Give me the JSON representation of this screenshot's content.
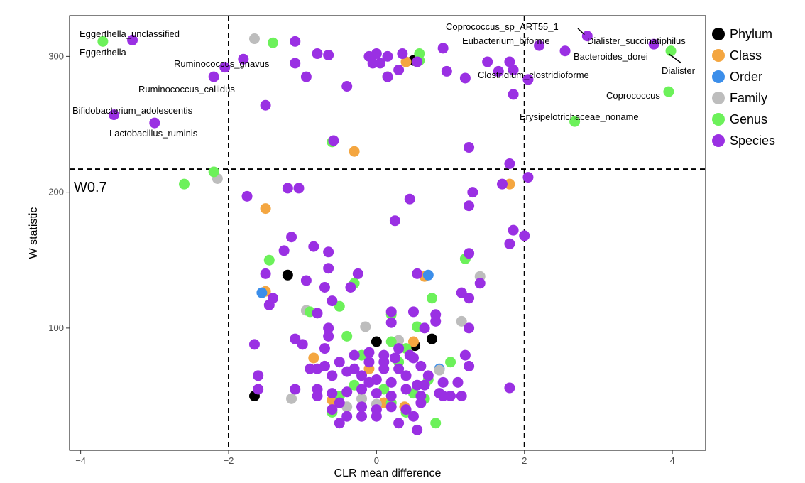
{
  "chart_data": {
    "type": "scatter",
    "xlabel": "CLR mean difference",
    "ylabel": "W statistic",
    "xlim": [
      -4.15,
      4.45
    ],
    "ylim": [
      10,
      330
    ],
    "x_ticks": [
      -4,
      -2,
      0,
      2,
      4
    ],
    "y_ticks": [
      100,
      200,
      300
    ],
    "x_tick_labels": [
      "−4",
      "−2",
      "0",
      "2",
      "4"
    ],
    "y_tick_labels": [
      "100",
      "200",
      "300"
    ],
    "grid": false,
    "legend_position": "right",
    "reference_lines": {
      "vertical": [
        -2,
        2
      ],
      "horizontal": 217,
      "horizontal_label": "W0.7"
    },
    "colors": {
      "Phylum": "#000000",
      "Class": "#F4A640",
      "Order": "#3B8EEA",
      "Family": "#BDBDBD",
      "Genus": "#6CF15A",
      "Species": "#9A30E3"
    },
    "legend": [
      "Phylum",
      "Class",
      "Order",
      "Family",
      "Genus",
      "Species"
    ],
    "series": [
      {
        "name": "Phylum",
        "points": [
          [
            -1.2,
            139
          ],
          [
            0,
            90
          ],
          [
            0.5,
            297
          ],
          [
            0.52,
            87
          ],
          [
            0.75,
            92
          ],
          [
            -1.65,
            50
          ]
        ]
      },
      {
        "name": "Class",
        "points": [
          [
            -0.3,
            230
          ],
          [
            0.4,
            296
          ],
          [
            1.8,
            206
          ],
          [
            -1.5,
            188
          ],
          [
            0.65,
            138
          ],
          [
            -1.5,
            127
          ],
          [
            -0.85,
            78
          ],
          [
            -0.1,
            70
          ],
          [
            -0.6,
            47
          ],
          [
            0.1,
            45
          ],
          [
            0.38,
            42
          ],
          [
            0.5,
            90
          ]
        ]
      },
      {
        "name": "Order",
        "points": [
          [
            0.7,
            139
          ],
          [
            -1.55,
            126
          ],
          [
            0.85,
            70
          ]
        ]
      },
      {
        "name": "Family",
        "points": [
          [
            -1.65,
            313
          ],
          [
            -2.15,
            210
          ],
          [
            1.4,
            138
          ],
          [
            -0.95,
            113
          ],
          [
            -0.15,
            101
          ],
          [
            1.15,
            105
          ],
          [
            0.3,
            91
          ],
          [
            0.85,
            69
          ],
          [
            -1.15,
            48
          ],
          [
            -0.2,
            48
          ],
          [
            -0.4,
            42
          ],
          [
            0,
            44
          ]
        ]
      },
      {
        "name": "Genus",
        "points": [
          [
            -3.7,
            311
          ],
          [
            -1.4,
            310
          ],
          [
            0.58,
            302
          ],
          [
            0.58,
            297
          ],
          [
            0.15,
            285
          ],
          [
            -0.6,
            237
          ],
          [
            -2.2,
            215
          ],
          [
            -2.6,
            206
          ],
          [
            2.68,
            252
          ],
          [
            3.95,
            274
          ],
          [
            3.98,
            304
          ],
          [
            -1.45,
            150
          ],
          [
            1.2,
            151
          ],
          [
            -0.3,
            133
          ],
          [
            0.75,
            122
          ],
          [
            -0.9,
            112
          ],
          [
            -0.5,
            116
          ],
          [
            0.2,
            110
          ],
          [
            0.55,
            101
          ],
          [
            -0.4,
            94
          ],
          [
            0.2,
            90
          ],
          [
            0.4,
            85
          ],
          [
            -0.2,
            80
          ],
          [
            0.3,
            75
          ],
          [
            0.7,
            62
          ],
          [
            -0.3,
            58
          ],
          [
            0.1,
            55
          ],
          [
            0.5,
            52
          ],
          [
            -0.5,
            50
          ],
          [
            0.2,
            45
          ],
          [
            0.8,
            30
          ],
          [
            -0.6,
            38
          ],
          [
            0.4,
            38
          ],
          [
            0.65,
            48
          ],
          [
            1.0,
            75
          ]
        ]
      },
      {
        "name": "Species",
        "points": [
          [
            -3.3,
            312
          ],
          [
            -3.55,
            257
          ],
          [
            -3.0,
            251
          ],
          [
            -1.5,
            264
          ],
          [
            -2.2,
            285
          ],
          [
            -2.05,
            292
          ],
          [
            -1.8,
            298
          ],
          [
            -1.1,
            311
          ],
          [
            -1.1,
            295
          ],
          [
            -0.95,
            285
          ],
          [
            -0.8,
            302
          ],
          [
            -0.65,
            301
          ],
          [
            -0.4,
            278
          ],
          [
            -0.1,
            300
          ],
          [
            0,
            302
          ],
          [
            -0.05,
            295
          ],
          [
            0.05,
            295
          ],
          [
            0.15,
            300
          ],
          [
            0.15,
            285
          ],
          [
            0.3,
            290
          ],
          [
            0.35,
            302
          ],
          [
            0.55,
            296
          ],
          [
            0.9,
            306
          ],
          [
            0.95,
            289
          ],
          [
            1.2,
            284
          ],
          [
            1.5,
            296
          ],
          [
            1.65,
            289
          ],
          [
            1.8,
            296
          ],
          [
            1.85,
            272
          ],
          [
            1.85,
            290
          ],
          [
            2.05,
            283
          ],
          [
            2.2,
            308
          ],
          [
            2.55,
            304
          ],
          [
            2.85,
            315
          ],
          [
            3.75,
            309
          ],
          [
            -0.58,
            238
          ],
          [
            1.25,
            233
          ],
          [
            1.8,
            221
          ],
          [
            2.05,
            211
          ],
          [
            1.3,
            200
          ],
          [
            1.7,
            206
          ],
          [
            1.25,
            190
          ],
          [
            -1.2,
            203
          ],
          [
            -1.05,
            203
          ],
          [
            -1.75,
            197
          ],
          [
            0.45,
            195
          ],
          [
            0.25,
            179
          ],
          [
            1.85,
            172
          ],
          [
            1.8,
            162
          ],
          [
            2.0,
            168
          ],
          [
            -1.15,
            167
          ],
          [
            -1.25,
            157
          ],
          [
            -0.85,
            160
          ],
          [
            -0.65,
            156
          ],
          [
            -0.65,
            144
          ],
          [
            -1.5,
            140
          ],
          [
            0.55,
            140
          ],
          [
            -0.25,
            140
          ],
          [
            1.25,
            155
          ],
          [
            -0.95,
            135
          ],
          [
            -0.35,
            130
          ],
          [
            -0.7,
            130
          ],
          [
            -1.4,
            122
          ],
          [
            -1.45,
            117
          ],
          [
            -0.6,
            120
          ],
          [
            -0.8,
            111
          ],
          [
            0.2,
            112
          ],
          [
            0.5,
            112
          ],
          [
            1.15,
            126
          ],
          [
            1.25,
            122
          ],
          [
            1.4,
            133
          ],
          [
            -0.65,
            100
          ],
          [
            0.2,
            104
          ],
          [
            0.65,
            100
          ],
          [
            1.25,
            100
          ],
          [
            -0.65,
            94
          ],
          [
            -1.1,
            92
          ],
          [
            -1.0,
            88
          ],
          [
            -0.7,
            85
          ],
          [
            -0.9,
            70
          ],
          [
            -0.7,
            72
          ],
          [
            -0.5,
            75
          ],
          [
            -0.3,
            80
          ],
          [
            -0.1,
            82
          ],
          [
            0.1,
            80
          ],
          [
            0.25,
            78
          ],
          [
            0.45,
            80
          ],
          [
            0.6,
            72
          ],
          [
            0.7,
            65
          ],
          [
            0.9,
            60
          ],
          [
            1.2,
            80
          ],
          [
            1.25,
            72
          ],
          [
            -0.6,
            65
          ],
          [
            -0.4,
            68
          ],
          [
            -0.2,
            65
          ],
          [
            0,
            62
          ],
          [
            0.2,
            60
          ],
          [
            0.4,
            65
          ],
          [
            0.55,
            58
          ],
          [
            -0.8,
            55
          ],
          [
            -0.6,
            52
          ],
          [
            -0.4,
            53
          ],
          [
            -0.2,
            55
          ],
          [
            0,
            52
          ],
          [
            0.2,
            50
          ],
          [
            0.4,
            55
          ],
          [
            0.6,
            50
          ],
          [
            -1.6,
            55
          ],
          [
            -1.6,
            65
          ],
          [
            -1.65,
            88
          ],
          [
            -1.1,
            55
          ],
          [
            -0.8,
            50
          ],
          [
            -0.5,
            45
          ],
          [
            -0.2,
            42
          ],
          [
            0,
            40
          ],
          [
            0.2,
            42
          ],
          [
            0.4,
            40
          ],
          [
            0.6,
            45
          ],
          [
            -0.4,
            35
          ],
          [
            -0.2,
            35
          ],
          [
            0,
            35
          ],
          [
            0.5,
            35
          ],
          [
            -0.8,
            70
          ],
          [
            0.9,
            50
          ],
          [
            1.0,
            50
          ],
          [
            1.15,
            50
          ],
          [
            1.8,
            56
          ],
          [
            -0.1,
            60
          ],
          [
            -0.3,
            70
          ],
          [
            0.3,
            70
          ],
          [
            0.1,
            70
          ],
          [
            -0.6,
            40
          ],
          [
            -0.5,
            30
          ],
          [
            0.3,
            30
          ],
          [
            0.55,
            25
          ],
          [
            0.5,
            78
          ],
          [
            0.3,
            85
          ],
          [
            0.1,
            75
          ],
          [
            -0.1,
            75
          ],
          [
            0.65,
            58
          ],
          [
            0.85,
            52
          ],
          [
            1.1,
            60
          ],
          [
            0.8,
            110
          ],
          [
            0.8,
            105
          ]
        ]
      }
    ],
    "annotations": [
      {
        "text": "Eggerthella_unclassified",
        "x": -3.3,
        "y": 312
      },
      {
        "text": "Eggerthella",
        "x": -3.7,
        "y": 311
      },
      {
        "text": "Ruminococcus_gnavus",
        "x": -2.05,
        "y": 292
      },
      {
        "text": "Ruminococcus_callidus",
        "x": -2.2,
        "y": 285
      },
      {
        "text": "Bifidobacterium_adolescentis",
        "x": -3.55,
        "y": 257
      },
      {
        "text": "Lactobacillus_ruminis",
        "x": -3.0,
        "y": 251
      },
      {
        "text": "Coprococcus_sp_ART55_1",
        "x": 2.85,
        "y": 315
      },
      {
        "text": "Dialister_succinatiphilus",
        "x": 3.75,
        "y": 309
      },
      {
        "text": "Eubacterium_biforme",
        "x": 2.2,
        "y": 308
      },
      {
        "text": "Bacteroides_dorei",
        "x": 2.55,
        "y": 304
      },
      {
        "text": "Dialister",
        "x": 3.98,
        "y": 304
      },
      {
        "text": "Clostridium_clostridioforme",
        "x": 1.65,
        "y": 289
      },
      {
        "text": "Coprococcus",
        "x": 3.95,
        "y": 274
      },
      {
        "text": "Erysipelotrichaceae_noname",
        "x": 2.68,
        "y": 252
      }
    ]
  }
}
